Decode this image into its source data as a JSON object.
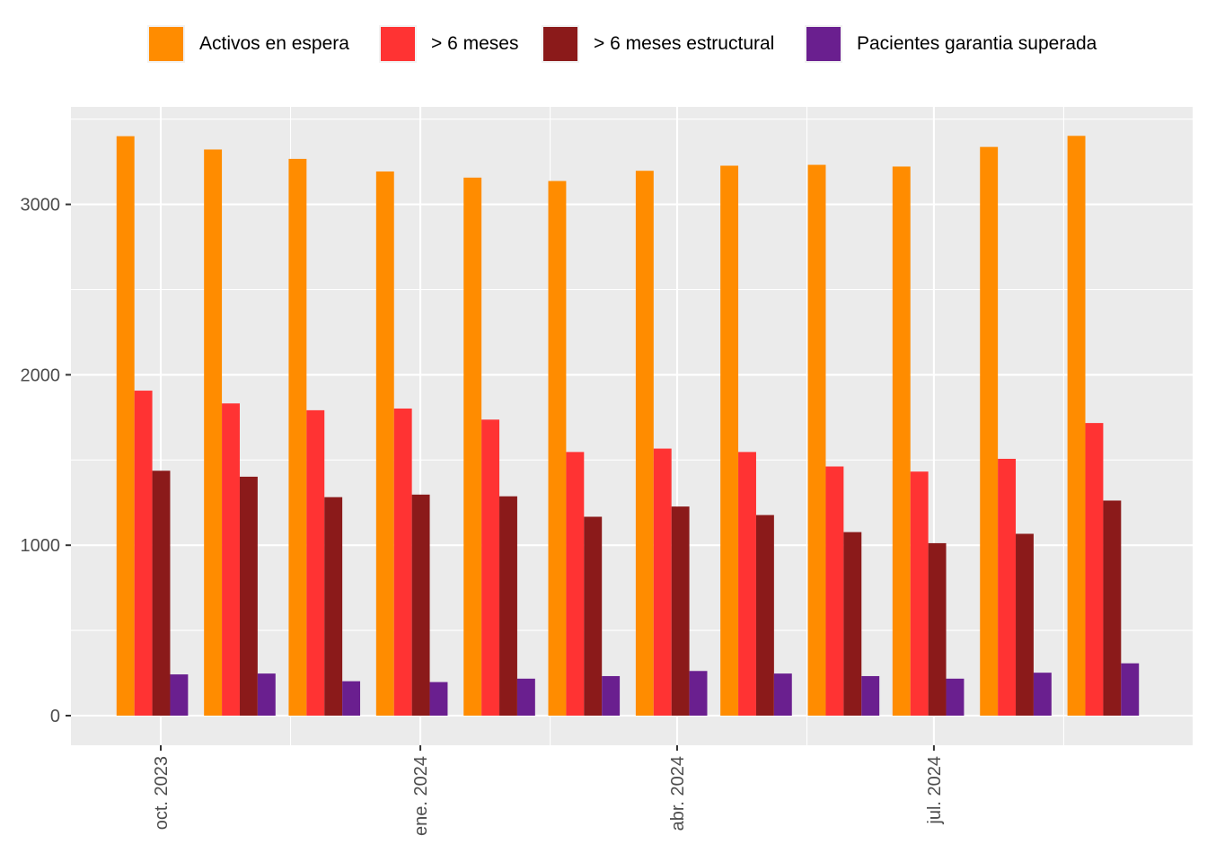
{
  "chart_data": {
    "type": "bar",
    "title": "",
    "xlabel": "",
    "ylabel": "",
    "ylim": [
      0,
      3400
    ],
    "y_ticks": [
      0,
      1000,
      2000,
      3000
    ],
    "y_tick_labels": [
      "0",
      "1000",
      "2000",
      "3000"
    ],
    "x_tick_labels": [
      "oct. 2023",
      "ene. 2024",
      "abr. 2024",
      "jul. 2024"
    ],
    "x_tick_dates": [
      "2023-10-01",
      "2024-01-01",
      "2024-04-01",
      "2024-07-01"
    ],
    "x_dates": [
      "2023-09-28",
      "2023-10-29",
      "2023-11-28",
      "2023-12-29",
      "2024-01-29",
      "2024-02-28",
      "2024-03-30",
      "2024-04-29",
      "2024-05-30",
      "2024-06-29",
      "2024-07-30",
      "2024-08-30"
    ],
    "legend_position": "top",
    "grid": true,
    "series": [
      {
        "name": "Activos en espera",
        "color": "#ff8c00",
        "values": [
          3400,
          3322,
          3267,
          3193,
          3157,
          3137,
          3197,
          3227,
          3232,
          3222,
          3337,
          3402
        ]
      },
      {
        "name": "> 6 meses",
        "color": "#ff3333",
        "values": [
          1907,
          1832,
          1792,
          1802,
          1737,
          1547,
          1567,
          1547,
          1462,
          1432,
          1507,
          1717
        ]
      },
      {
        "name": "> 6 meses estructural",
        "color": "#8b1a1a",
        "values": [
          1437,
          1402,
          1282,
          1297,
          1287,
          1167,
          1227,
          1177,
          1077,
          1012,
          1067,
          1262
        ]
      },
      {
        "name": "Pacientes garantia superada",
        "color": "#6a1f8f",
        "values": [
          242,
          247,
          202,
          197,
          217,
          232,
          262,
          247,
          232,
          217,
          252,
          307
        ]
      }
    ]
  }
}
